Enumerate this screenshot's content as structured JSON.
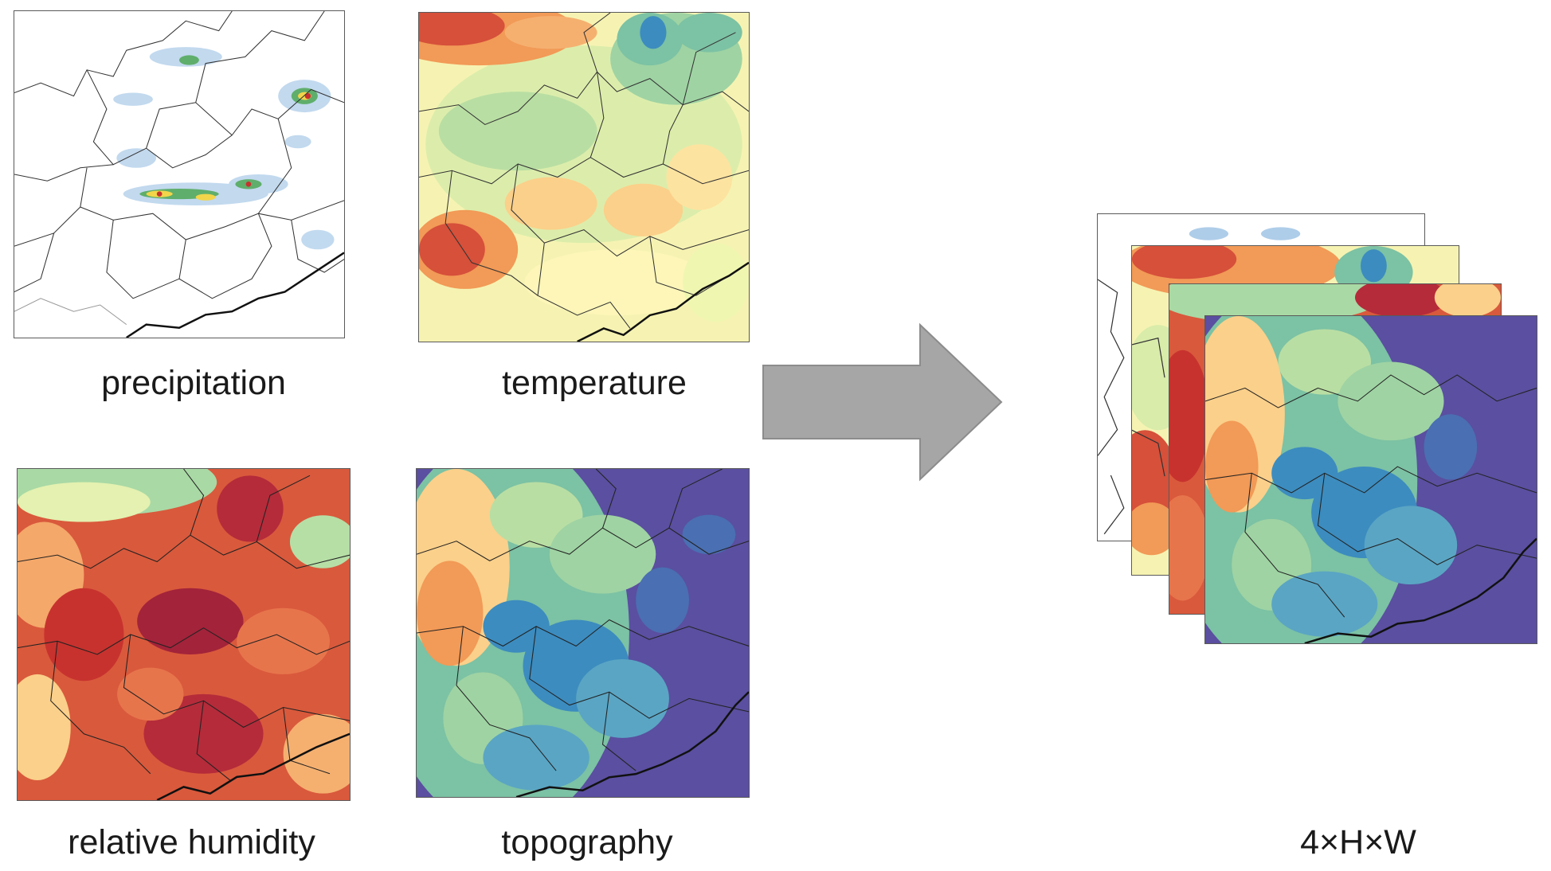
{
  "panels": {
    "precipitation": {
      "label": "precipitation"
    },
    "temperature": {
      "label": "temperature"
    },
    "relative_humidity": {
      "label": "relative humidity"
    },
    "topography": {
      "label": "topography"
    }
  },
  "output": {
    "label": "4×H×W"
  },
  "colors": {
    "arrow": "#a6a6a6",
    "border": "#5a5a5a",
    "spectral_red": "#c7322e",
    "spectral_orange": "#f29a57",
    "spectral_yellow": "#fdf6b8",
    "spectral_green": "#9fd3a3",
    "spectral_blue": "#3c8cbf",
    "spectral_purple": "#5a4fa0",
    "precip_blue": "#aecde9"
  }
}
